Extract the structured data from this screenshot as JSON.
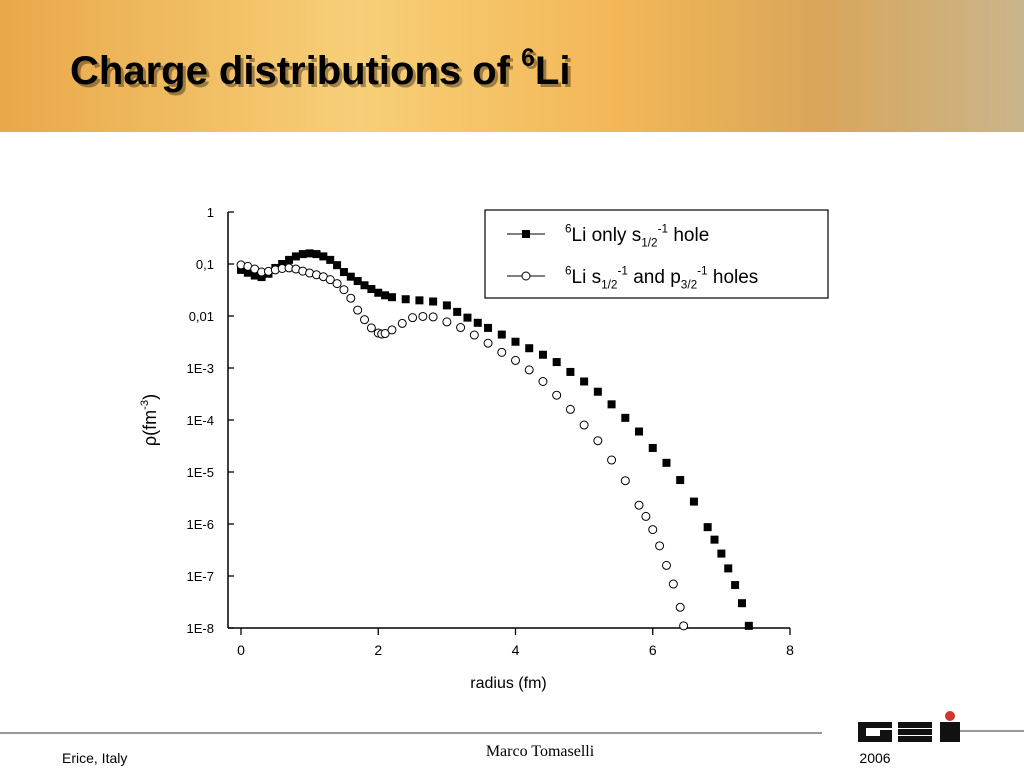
{
  "slide": {
    "title": [
      [
        "Charge distributions of ",
        ""
      ],
      [
        "6",
        "sup"
      ],
      [
        "Li",
        ""
      ]
    ],
    "footer_left": "Erice, Italy",
    "footer_center": "Marco Tomaselli",
    "footer_right": "2006"
  },
  "chart_data": {
    "type": "scatter",
    "log_y": true,
    "xlabel": "radius (fm)",
    "ylabel": [
      [
        "ρ(fm",
        ""
      ],
      [
        "-3",
        "sup"
      ],
      [
        ")",
        ""
      ]
    ],
    "xlim": [
      0,
      8
    ],
    "xticks": [
      0,
      2,
      4,
      6,
      8
    ],
    "ylim": [
      1e-08,
      1
    ],
    "yticks": [
      1,
      {
        "value": 0.1,
        "label": "0,1"
      },
      {
        "value": 0.01,
        "label": "0,01"
      },
      {
        "value": 0.001,
        "label": "1E-3"
      },
      {
        "value": 0.0001,
        "label": "1E-4"
      },
      {
        "value": 1e-05,
        "label": "1E-5"
      },
      {
        "value": 1e-06,
        "label": "1E-6"
      },
      {
        "value": 1e-07,
        "label": "1E-7"
      },
      {
        "value": 1e-08,
        "label": "1E-8"
      }
    ],
    "legend": "upper right",
    "series": [
      {
        "name": [
          [
            "6",
            "sup"
          ],
          [
            "Li only s",
            ""
          ],
          [
            "1/2",
            "sub"
          ],
          [
            "-1",
            "sup"
          ],
          [
            " hole",
            ""
          ]
        ],
        "color": "#000000",
        "marker": "square",
        "x": [
          0,
          0.1,
          0.2,
          0.3,
          0.4,
          0.5,
          0.6,
          0.7,
          0.8,
          0.9,
          1.0,
          1.1,
          1.2,
          1.3,
          1.4,
          1.5,
          1.6,
          1.7,
          1.8,
          1.9,
          2.0,
          2.1,
          2.2,
          2.4,
          2.6,
          2.8,
          3.0,
          3.15,
          3.3,
          3.45,
          3.6,
          3.8,
          4.0,
          4.2,
          4.4,
          4.6,
          4.8,
          5.0,
          5.2,
          5.4,
          5.6,
          5.8,
          6.0,
          6.2,
          6.4,
          6.6,
          6.8,
          6.9,
          7.0,
          7.1,
          7.2,
          7.3,
          7.4
        ],
        "values": [
          0.077,
          0.068,
          0.06,
          0.056,
          0.065,
          0.084,
          0.1,
          0.12,
          0.14,
          0.155,
          0.16,
          0.155,
          0.14,
          0.12,
          0.095,
          0.07,
          0.057,
          0.047,
          0.039,
          0.033,
          0.028,
          0.025,
          0.023,
          0.021,
          0.02,
          0.019,
          0.016,
          0.012,
          0.0093,
          0.0074,
          0.0059,
          0.0044,
          0.0032,
          0.0024,
          0.0018,
          0.0013,
          0.00084,
          0.00055,
          0.00035,
          0.0002,
          0.00011,
          6e-05,
          2.9e-05,
          1.5e-05,
          7e-06,
          2.7e-06,
          8.7e-07,
          5e-07,
          2.7e-07,
          1.4e-07,
          6.7e-08,
          3e-08,
          1.1e-08
        ]
      },
      {
        "name": [
          [
            "6",
            "sup"
          ],
          [
            "Li s",
            ""
          ],
          [
            "1/2",
            "sub"
          ],
          [
            "-1",
            "sup"
          ],
          [
            " and p",
            ""
          ],
          [
            "3/2",
            "sub"
          ],
          [
            "-1",
            "sup"
          ],
          [
            " holes",
            ""
          ]
        ],
        "color": "#000000",
        "marker": "circle",
        "x": [
          0,
          0.1,
          0.2,
          0.3,
          0.4,
          0.5,
          0.6,
          0.7,
          0.8,
          0.9,
          1.0,
          1.1,
          1.2,
          1.3,
          1.4,
          1.5,
          1.6,
          1.7,
          1.8,
          1.9,
          2.0,
          2.05,
          2.1,
          2.2,
          2.35,
          2.5,
          2.65,
          2.8,
          3.0,
          3.2,
          3.4,
          3.6,
          3.8,
          4.0,
          4.2,
          4.4,
          4.6,
          4.8,
          5.0,
          5.2,
          5.4,
          5.6,
          5.8,
          5.9,
          6.0,
          6.1,
          6.2,
          6.3,
          6.4,
          6.45
        ],
        "values": [
          0.096,
          0.09,
          0.08,
          0.07,
          0.072,
          0.077,
          0.082,
          0.084,
          0.08,
          0.073,
          0.067,
          0.062,
          0.057,
          0.05,
          0.042,
          0.032,
          0.022,
          0.013,
          0.0085,
          0.0059,
          0.0047,
          0.0045,
          0.0046,
          0.0054,
          0.0072,
          0.0093,
          0.0098,
          0.0096,
          0.0077,
          0.006,
          0.0043,
          0.003,
          0.002,
          0.0014,
          0.00092,
          0.00055,
          0.0003,
          0.00016,
          8e-05,
          4e-05,
          1.7e-05,
          6.8e-06,
          2.3e-06,
          1.4e-06,
          7.8e-07,
          3.8e-07,
          1.6e-07,
          7e-08,
          2.5e-08,
          1.1e-08
        ]
      }
    ]
  }
}
